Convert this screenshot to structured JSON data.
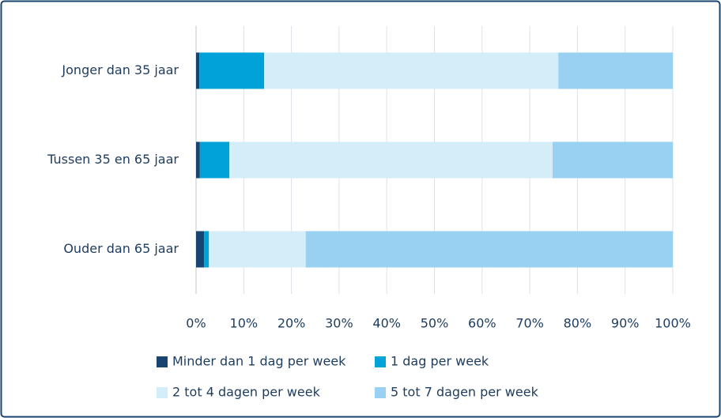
{
  "chart_data": {
    "type": "stacked-bar-horizontal",
    "categories": [
      "Jonger dan 35 jaar",
      "Tussen 35 en 65 jaar",
      "Ouder dan 65 jaar"
    ],
    "series": [
      {
        "name": "Minder dan 1 dag per week",
        "color": "#17456f",
        "values": [
          0.7,
          0.8,
          1.7
        ]
      },
      {
        "name": "1 dag per week",
        "color": "#00a3d9",
        "values": [
          13.6,
          6.2,
          1.0
        ]
      },
      {
        "name": "2 tot 4 dagen per week",
        "color": "#d4eef9",
        "values": [
          61.7,
          67.8,
          20.3
        ]
      },
      {
        "name": "5 tot 7 dagen per week",
        "color": "#98d1f1",
        "values": [
          24.0,
          25.2,
          77.0
        ]
      }
    ],
    "xlim": [
      0,
      100
    ],
    "xticks": [
      {
        "value": 0,
        "label": "0%"
      },
      {
        "value": 10,
        "label": "10%"
      },
      {
        "value": 20,
        "label": "20%"
      },
      {
        "value": 30,
        "label": "30%"
      },
      {
        "value": 40,
        "label": "40%"
      },
      {
        "value": 50,
        "label": "50%"
      },
      {
        "value": 60,
        "label": "60%"
      },
      {
        "value": 70,
        "label": "70%"
      },
      {
        "value": 80,
        "label": "80%"
      },
      {
        "value": 90,
        "label": "90%"
      },
      {
        "value": 100,
        "label": "100%"
      }
    ],
    "grid": true,
    "legend": "bottom"
  }
}
